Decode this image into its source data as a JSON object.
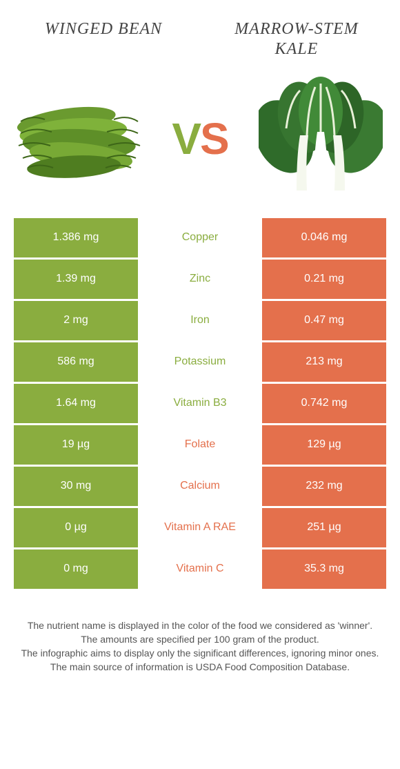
{
  "foods": {
    "left": {
      "name": "Winged Bean",
      "color": "#8aad3f"
    },
    "right": {
      "name": "Marrow-stem Kale",
      "color": "#e4704c"
    }
  },
  "vs_label": {
    "v": "V",
    "s": "S"
  },
  "rows": [
    {
      "nutrient": "Copper",
      "left": "1.386 mg",
      "right": "0.046 mg",
      "winner": "left"
    },
    {
      "nutrient": "Zinc",
      "left": "1.39 mg",
      "right": "0.21 mg",
      "winner": "left"
    },
    {
      "nutrient": "Iron",
      "left": "2 mg",
      "right": "0.47 mg",
      "winner": "left"
    },
    {
      "nutrient": "Potassium",
      "left": "586 mg",
      "right": "213 mg",
      "winner": "left"
    },
    {
      "nutrient": "Vitamin B3",
      "left": "1.64 mg",
      "right": "0.742 mg",
      "winner": "left"
    },
    {
      "nutrient": "Folate",
      "left": "19 µg",
      "right": "129 µg",
      "winner": "right"
    },
    {
      "nutrient": "Calcium",
      "left": "30 mg",
      "right": "232 mg",
      "winner": "right"
    },
    {
      "nutrient": "Vitamin A RAE",
      "left": "0 µg",
      "right": "251 µg",
      "winner": "right"
    },
    {
      "nutrient": "Vitamin C",
      "left": "0 mg",
      "right": "35.3 mg",
      "winner": "right"
    }
  ],
  "footer_lines": [
    "The nutrient name is displayed in the color of the food we considered as 'winner'.",
    "The amounts are specified per 100 gram of the product.",
    "The infographic aims to display only the significant differences, ignoring minor ones.",
    "The main source of information is USDA Food Composition Database."
  ],
  "colors": {
    "left_bg": "#8aad3f",
    "right_bg": "#e4704c",
    "cell_text": "#ffffff",
    "background": "#ffffff"
  }
}
